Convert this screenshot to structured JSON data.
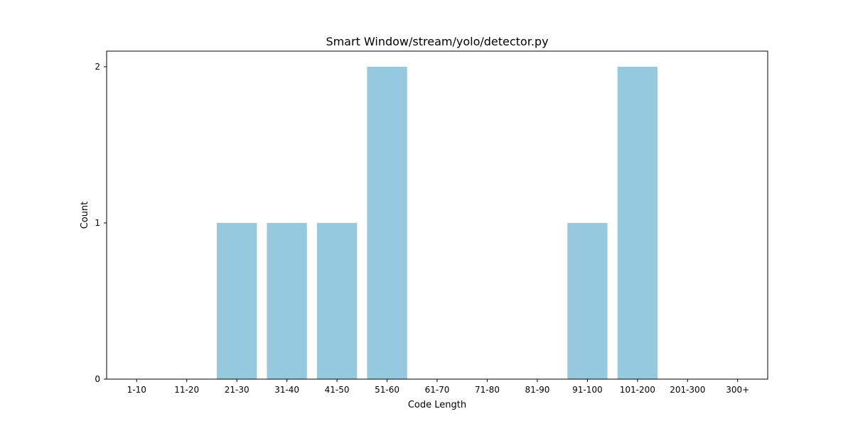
{
  "chart_data": {
    "type": "bar",
    "title": "Smart Window/stream/yolo/detector.py",
    "xlabel": "Code Length",
    "ylabel": "Count",
    "categories": [
      "1-10",
      "11-20",
      "21-30",
      "31-40",
      "41-50",
      "51-60",
      "61-70",
      "71-80",
      "81-90",
      "91-100",
      "101-200",
      "201-300",
      "300+"
    ],
    "values": [
      0,
      0,
      1,
      1,
      1,
      2,
      0,
      0,
      0,
      1,
      2,
      0,
      0
    ],
    "yticks": [
      0,
      1,
      2
    ],
    "ylim": [
      0,
      2.1
    ],
    "grid": false,
    "legend": "none",
    "bar_color": "#96c9dd"
  }
}
